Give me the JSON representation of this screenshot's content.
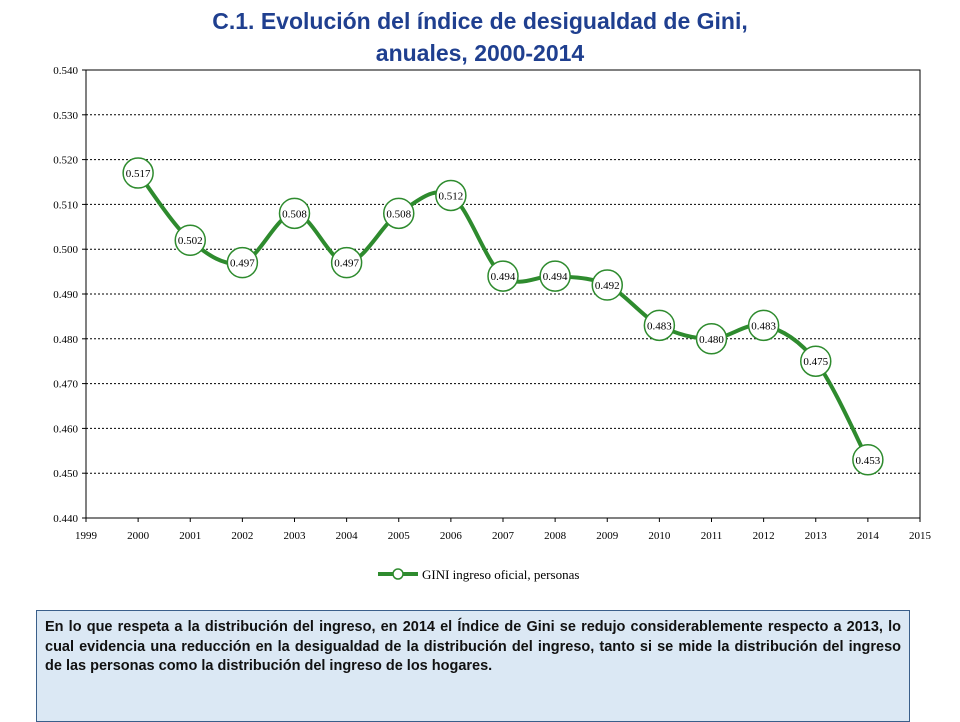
{
  "title_line1": "C.1. Evolución del índice de desigualdad de Gini,",
  "title_line2": "anuales, 2000-2014",
  "chart_data": {
    "type": "line",
    "title": "C.1. Evolución del índice de desigualdad de Gini, anuales, 2000-2014",
    "xlabel": "",
    "ylabel": "",
    "xlim": [
      1999,
      2015
    ],
    "ylim": [
      0.44,
      0.54
    ],
    "x_ticks": [
      "1999",
      "2000",
      "2001",
      "2002",
      "2003",
      "2004",
      "2005",
      "2006",
      "2007",
      "2008",
      "2009",
      "2010",
      "2011",
      "2012",
      "2013",
      "2014",
      "2015"
    ],
    "y_ticks": [
      "0.440",
      "0.450",
      "0.460",
      "0.470",
      "0.480",
      "0.490",
      "0.500",
      "0.510",
      "0.520",
      "0.530",
      "0.540"
    ],
    "grid": "horizontal dotted",
    "legend_position": "bottom",
    "series": [
      {
        "name": "GINI ingreso oficial, personas",
        "color": "#2e8b2e",
        "x": [
          2000,
          2001,
          2002,
          2003,
          2004,
          2005,
          2006,
          2007,
          2008,
          2009,
          2010,
          2011,
          2012,
          2013,
          2014
        ],
        "values": [
          0.517,
          0.502,
          0.497,
          0.508,
          0.497,
          0.508,
          0.512,
          0.494,
          0.494,
          0.492,
          0.483,
          0.48,
          0.483,
          0.475,
          0.453
        ],
        "labels": [
          "0.517",
          "0.502",
          "0.497",
          "0.508",
          "0.497",
          "0.508",
          "0.512",
          "0.494",
          "0.494",
          "0.492",
          "0.483",
          "0.480",
          "0.483",
          "0.475",
          "0.453"
        ]
      }
    ]
  },
  "note_text": "En lo que respeta a la distribución del ingreso, en 2014 el Índice de Gini se redujo considerablemente respecto a 2013, lo cual evidencia una reducción en la desigualdad de la distribución del ingreso, tanto si se mide la distribución del ingreso de las personas como la distribución del ingreso de los hogares."
}
